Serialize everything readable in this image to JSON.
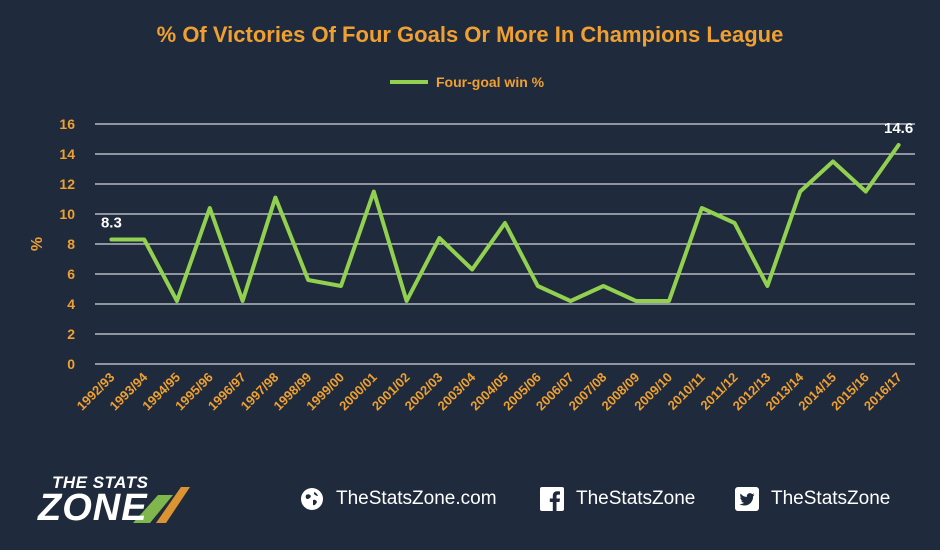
{
  "chart_data": {
    "type": "line",
    "title": "% Of Victories Of Four Goals Or More In Champions League",
    "ylabel": "%",
    "xlabel": "",
    "ylim": [
      0,
      16
    ],
    "yticks": [
      0,
      2,
      4,
      6,
      8,
      10,
      12,
      14,
      16
    ],
    "grid": true,
    "legend_position": "top-center",
    "categories": [
      "1992/93",
      "1993/94",
      "1994/95",
      "1995/96",
      "1996/97",
      "1997/98",
      "1998/99",
      "1999/00",
      "2000/01",
      "2001/02",
      "2002/03",
      "2003/04",
      "2004/05",
      "2005/06",
      "2006/07",
      "2007/08",
      "2008/09",
      "2009/10",
      "2010/11",
      "2011/12",
      "2012/13",
      "2013/14",
      "2014/15",
      "2015/16",
      "2016/17"
    ],
    "series": [
      {
        "name": "Four-goal win %",
        "color": "#92d050",
        "values": [
          8.3,
          8.3,
          4.2,
          10.4,
          4.2,
          11.1,
          5.6,
          5.2,
          11.5,
          4.2,
          8.4,
          6.3,
          9.4,
          5.2,
          4.2,
          5.2,
          4.2,
          4.2,
          10.4,
          9.4,
          5.2,
          11.5,
          13.5,
          11.5,
          14.6
        ]
      }
    ],
    "data_labels": [
      {
        "index": 0,
        "text": "8.3"
      },
      {
        "index": 24,
        "text": "14.6"
      }
    ]
  },
  "colors": {
    "background": "#1f2a3c",
    "title": "#f0a030",
    "axis_text": "#f0a030",
    "legend_text": "#f0a030",
    "grid": "#ffffff",
    "line": "#92d050",
    "label": "#ffffff"
  },
  "footer": {
    "brand_top": "THE STATS",
    "brand_bottom": "ZONE",
    "website": "TheStatsZone.com",
    "facebook": "TheStatsZone",
    "twitter": "TheStatsZone"
  }
}
